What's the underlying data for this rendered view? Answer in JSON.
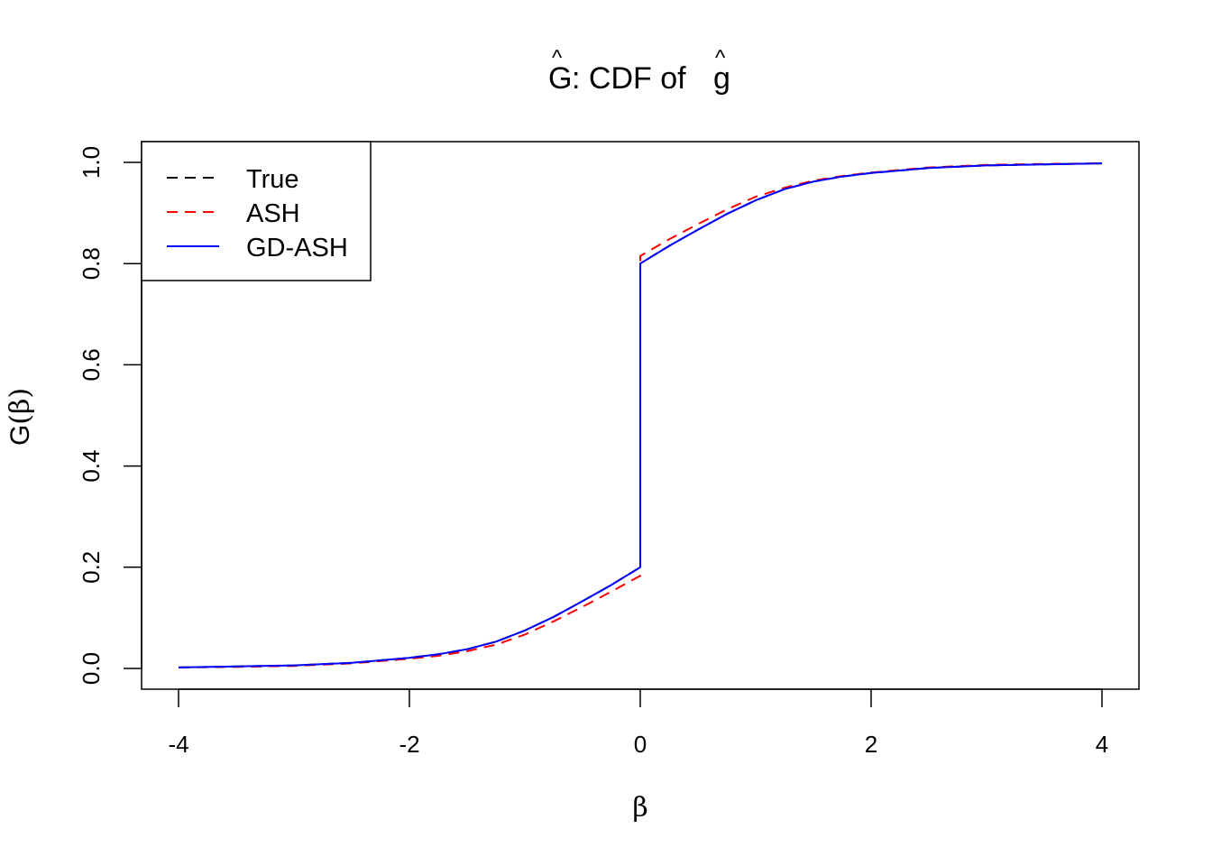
{
  "chart_data": {
    "type": "line",
    "title": "Ĝ: CDF of ĝ",
    "title_parts": {
      "symbol": "G",
      "middle": ": CDF of ",
      "symbol2": "g",
      "hat": "^"
    },
    "xlabel": "β",
    "ylabel": "Ĝ(β)",
    "ylabel_parts": {
      "symbol": "G",
      "arg": "(β)"
    },
    "xlim": [
      -4,
      4
    ],
    "ylim": [
      0,
      1
    ],
    "xticks": [
      -4,
      -2,
      0,
      2,
      4
    ],
    "xtick_labels": [
      "-4",
      "-2",
      "0",
      "2",
      "4"
    ],
    "yticks": [
      0,
      0.2,
      0.4,
      0.6,
      0.8,
      1.0
    ],
    "ytick_labels": [
      "0.0",
      "0.2",
      "0.4",
      "0.6",
      "0.8",
      "1.0"
    ],
    "grid": false,
    "legend_position": "top-left",
    "series": [
      {
        "name": "True",
        "color": "#000000",
        "style": "dashed",
        "x": [
          -4,
          -3.5,
          -3,
          -2.5,
          -2,
          -1.75,
          -1.5,
          -1.25,
          -1,
          -0.75,
          -0.5,
          -0.25,
          0,
          0,
          0.25,
          0.5,
          0.75,
          1,
          1.25,
          1.5,
          1.75,
          2,
          2.5,
          3,
          3.5,
          4
        ],
        "y": [
          0.002,
          0.004,
          0.006,
          0.011,
          0.021,
          0.028,
          0.038,
          0.053,
          0.075,
          0.102,
          0.133,
          0.165,
          0.2,
          0.8,
          0.835,
          0.867,
          0.898,
          0.925,
          0.947,
          0.962,
          0.972,
          0.979,
          0.989,
          0.994,
          0.996,
          0.998
        ]
      },
      {
        "name": "ASH",
        "color": "#ff0000",
        "style": "dashed",
        "x": [
          -4,
          -3.5,
          -3,
          -2.5,
          -2,
          -1.75,
          -1.5,
          -1.25,
          -1,
          -0.75,
          -0.5,
          -0.25,
          0,
          0,
          0.25,
          0.5,
          0.75,
          1,
          1.25,
          1.5,
          1.75,
          2,
          2.5,
          3,
          3.5,
          4
        ],
        "y": [
          0.002,
          0.003,
          0.005,
          0.01,
          0.019,
          0.025,
          0.034,
          0.047,
          0.067,
          0.093,
          0.122,
          0.152,
          0.183,
          0.815,
          0.848,
          0.878,
          0.907,
          0.932,
          0.95,
          0.964,
          0.973,
          0.98,
          0.99,
          0.995,
          0.997,
          0.998
        ]
      },
      {
        "name": "GD-ASH",
        "color": "#0000ff",
        "style": "solid",
        "x": [
          -4,
          -3.5,
          -3,
          -2.5,
          -2,
          -1.75,
          -1.5,
          -1.25,
          -1,
          -0.75,
          -0.5,
          -0.25,
          0,
          0,
          0.25,
          0.5,
          0.75,
          1,
          1.25,
          1.5,
          1.75,
          2,
          2.5,
          3,
          3.5,
          4
        ],
        "y": [
          0.002,
          0.004,
          0.006,
          0.011,
          0.021,
          0.028,
          0.038,
          0.053,
          0.075,
          0.102,
          0.133,
          0.165,
          0.2,
          0.8,
          0.835,
          0.867,
          0.898,
          0.925,
          0.947,
          0.962,
          0.972,
          0.979,
          0.989,
          0.994,
          0.996,
          0.998
        ]
      }
    ]
  }
}
